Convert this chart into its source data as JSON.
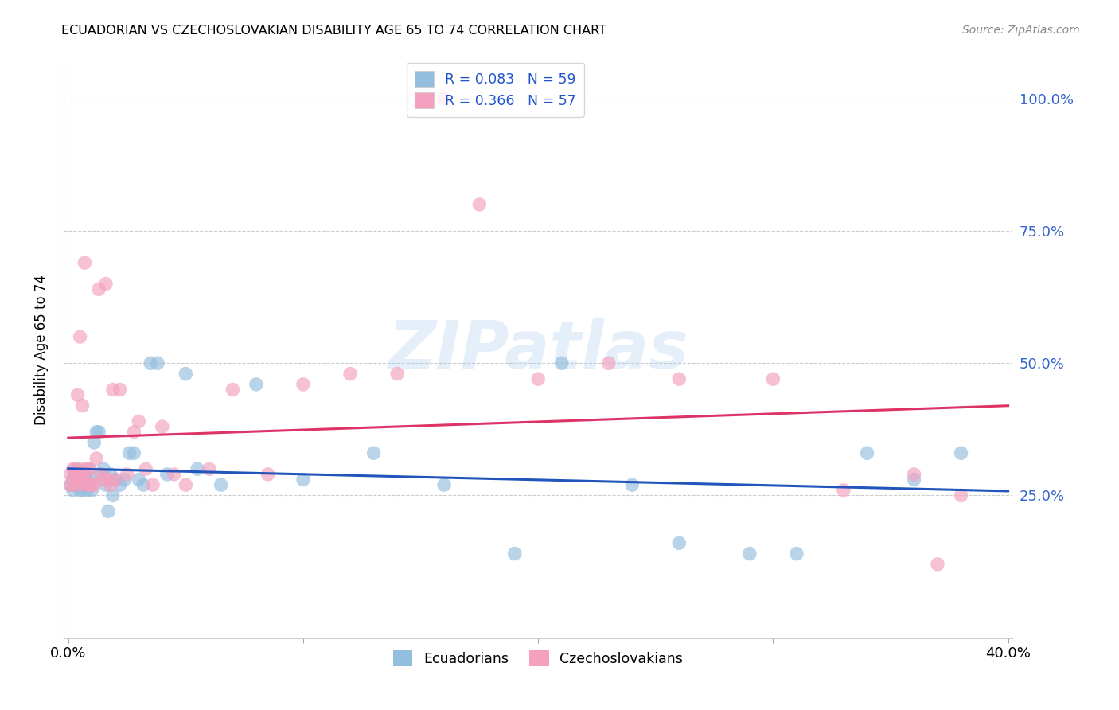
{
  "title": "ECUADORIAN VS CZECHOSLOVAKIAN DISABILITY AGE 65 TO 74 CORRELATION CHART",
  "source": "Source: ZipAtlas.com",
  "ylabel": "Disability Age 65 to 74",
  "ecuadorians_color": "#94bede",
  "czechoslovakians_color": "#f4a0be",
  "trendline_blue": "#2255bb",
  "trendline_pink": "#dd3366",
  "watermark_text": "ZIPatlas",
  "blue_scatter_x": [
    0.001,
    0.002,
    0.002,
    0.003,
    0.003,
    0.003,
    0.004,
    0.004,
    0.004,
    0.005,
    0.005,
    0.005,
    0.006,
    0.006,
    0.006,
    0.007,
    0.007,
    0.008,
    0.008,
    0.008,
    0.009,
    0.009,
    0.01,
    0.01,
    0.011,
    0.012,
    0.013,
    0.014,
    0.015,
    0.016,
    0.017,
    0.018,
    0.019,
    0.02,
    0.022,
    0.024,
    0.026,
    0.028,
    0.03,
    0.032,
    0.035,
    0.038,
    0.042,
    0.05,
    0.055,
    0.065,
    0.08,
    0.1,
    0.13,
    0.16,
    0.19,
    0.21,
    0.24,
    0.26,
    0.29,
    0.31,
    0.34,
    0.36,
    0.38
  ],
  "blue_scatter_y": [
    0.27,
    0.28,
    0.26,
    0.29,
    0.28,
    0.27,
    0.28,
    0.27,
    0.3,
    0.26,
    0.28,
    0.29,
    0.27,
    0.26,
    0.28,
    0.27,
    0.29,
    0.28,
    0.26,
    0.27,
    0.3,
    0.27,
    0.28,
    0.26,
    0.35,
    0.37,
    0.37,
    0.29,
    0.3,
    0.27,
    0.22,
    0.29,
    0.25,
    0.28,
    0.27,
    0.28,
    0.33,
    0.33,
    0.28,
    0.27,
    0.5,
    0.5,
    0.29,
    0.48,
    0.3,
    0.27,
    0.46,
    0.28,
    0.33,
    0.27,
    0.14,
    0.5,
    0.27,
    0.16,
    0.14,
    0.14,
    0.33,
    0.28,
    0.33
  ],
  "pink_scatter_x": [
    0.001,
    0.001,
    0.002,
    0.002,
    0.003,
    0.003,
    0.003,
    0.004,
    0.004,
    0.005,
    0.005,
    0.005,
    0.006,
    0.006,
    0.006,
    0.007,
    0.007,
    0.008,
    0.008,
    0.009,
    0.009,
    0.01,
    0.011,
    0.012,
    0.013,
    0.014,
    0.015,
    0.016,
    0.017,
    0.018,
    0.019,
    0.02,
    0.022,
    0.025,
    0.028,
    0.03,
    0.033,
    0.036,
    0.04,
    0.045,
    0.05,
    0.06,
    0.07,
    0.085,
    0.1,
    0.12,
    0.14,
    0.16,
    0.175,
    0.2,
    0.23,
    0.26,
    0.3,
    0.33,
    0.36,
    0.37,
    0.38
  ],
  "pink_scatter_y": [
    0.29,
    0.27,
    0.3,
    0.27,
    0.28,
    0.3,
    0.29,
    0.44,
    0.29,
    0.55,
    0.29,
    0.27,
    0.42,
    0.28,
    0.3,
    0.69,
    0.28,
    0.3,
    0.27,
    0.27,
    0.3,
    0.27,
    0.27,
    0.32,
    0.64,
    0.29,
    0.28,
    0.65,
    0.28,
    0.27,
    0.45,
    0.28,
    0.45,
    0.29,
    0.37,
    0.39,
    0.3,
    0.27,
    0.38,
    0.29,
    0.27,
    0.3,
    0.45,
    0.29,
    0.46,
    0.48,
    0.48,
    1.0,
    0.8,
    0.47,
    0.5,
    0.47,
    0.47,
    0.26,
    0.29,
    0.12,
    0.25
  ]
}
